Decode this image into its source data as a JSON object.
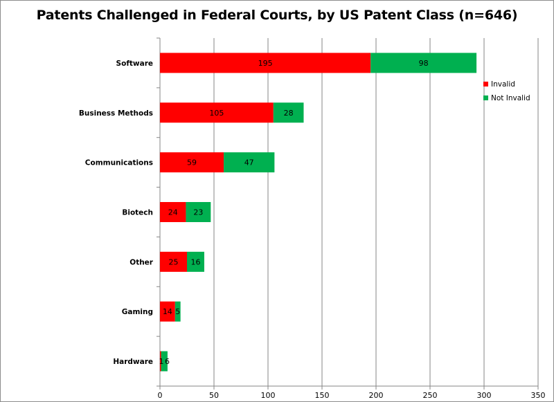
{
  "chart_data": {
    "type": "bar",
    "orientation": "horizontal",
    "stacked": true,
    "title": "Patents Challenged in Federal Courts, by US Patent Class (n=646)",
    "xlabel": "",
    "ylabel": "",
    "categories": [
      "Software",
      "Business Methods",
      "Communications",
      "Biotech",
      "Other",
      "Gaming",
      "Hardware"
    ],
    "series": [
      {
        "name": "Invalid",
        "color": "#ff0000",
        "values": [
          195,
          105,
          59,
          24,
          25,
          14,
          1
        ]
      },
      {
        "name": "Not Invalid",
        "color": "#00b050",
        "values": [
          98,
          28,
          47,
          23,
          16,
          5,
          6
        ]
      }
    ],
    "data_labels": {
      "Invalid": [
        "195",
        "105",
        "59",
        "24",
        "25",
        "14",
        "1"
      ],
      "Not Invalid": [
        "98",
        "28",
        "47",
        "23",
        "16",
        "5",
        "6"
      ]
    },
    "xlim": [
      0,
      350
    ],
    "xticks": [
      0,
      50,
      100,
      150,
      200,
      250,
      300,
      350
    ],
    "xtick_labels": [
      "0",
      "50",
      "100",
      "150",
      "200",
      "250",
      "300",
      "350"
    ],
    "grid": true,
    "legend_position": "right"
  }
}
